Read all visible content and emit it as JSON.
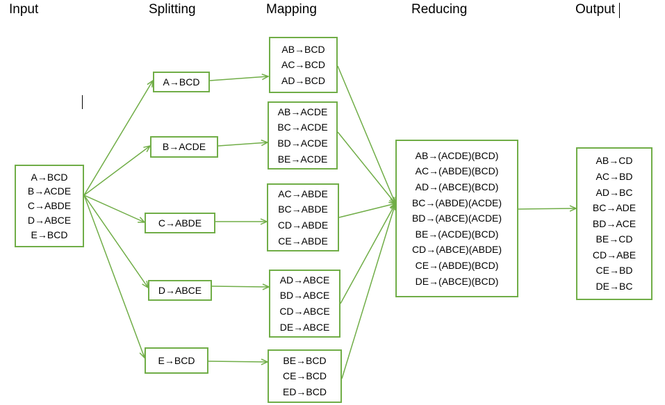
{
  "headers": {
    "input": "Input",
    "splitting": "Splitting",
    "mapping": "Mapping",
    "reducing": "Reducing",
    "output": "Output"
  },
  "input_lines": [
    "A→BCD",
    "B→ACDE",
    "C→ABDE",
    "D→ABCE",
    "E→BCD"
  ],
  "splits": [
    "A→BCD",
    "B→ACDE",
    "C→ABDE",
    "D→ABCE",
    "E→BCD"
  ],
  "maps": [
    [
      "AB→BCD",
      "AC→BCD",
      "AD→BCD"
    ],
    [
      "AB→ACDE",
      "BC→ACDE",
      "BD→ACDE",
      "BE→ACDE"
    ],
    [
      "AC→ABDE",
      "BC→ABDE",
      "CD→ABDE",
      "CE→ABDE"
    ],
    [
      "AD→ABCE",
      "BD→ABCE",
      "CD→ABCE",
      "DE→ABCE"
    ],
    [
      "BE→BCD",
      "CE→BCD",
      "ED→BCD"
    ]
  ],
  "reduce_lines": [
    "AB→(ACDE)(BCD)",
    "AC→(ABDE)(BCD)",
    "AD→(ABCE)(BCD)",
    "BC→(ABDE)(ACDE)",
    "BD→(ABCE)(ACDE)",
    "BE→(ACDE)(BCD)",
    "CD→(ABCE)(ABDE)",
    "CE→(ABDE)(BCD)",
    "DE→(ABCE)(BCD)"
  ],
  "output_lines": [
    "AB→CD",
    "AC→BD",
    "AD→BC",
    "BC→ADE",
    "BD→ACE",
    "BE→CD",
    "CD→ABE",
    "CE→BD",
    "DE→BC"
  ],
  "colors": {
    "line": "#70ad47",
    "text": "#000000",
    "background": "#ffffff"
  }
}
